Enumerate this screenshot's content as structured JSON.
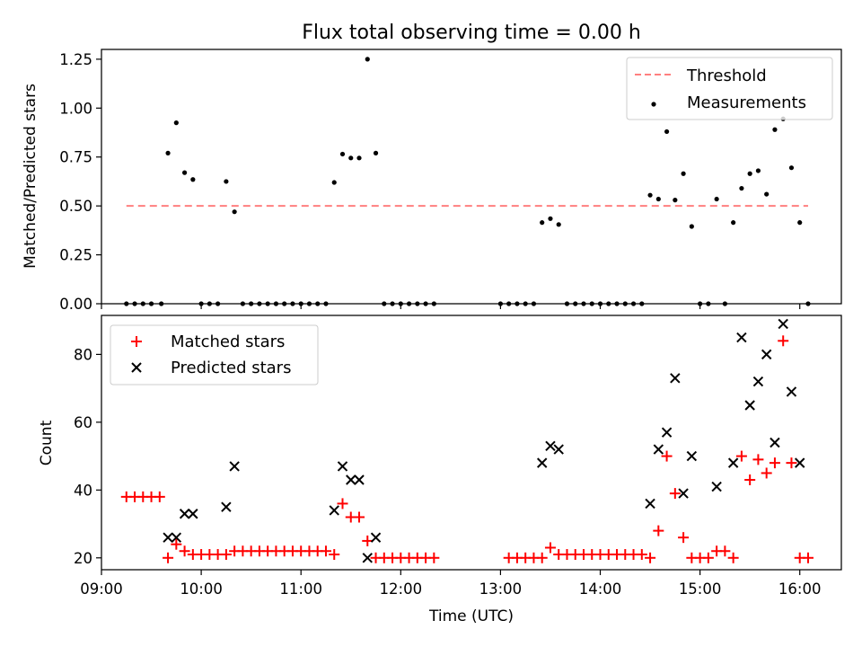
{
  "figure": {
    "title": "Flux total observing time = 0.00 h"
  },
  "colors": {
    "threshold": "#ff7f7f",
    "measurement": "#000000",
    "matched": "#ff0000",
    "predicted": "#000000"
  },
  "chart_data": [
    {
      "type": "scatter",
      "title": "Flux total observing time = 0.00 h",
      "xlabel": "",
      "ylabel": "Matched/Predicted stars",
      "x_unit": "hours UTC",
      "xlim": [
        "09:00",
        "16:25"
      ],
      "ylim": [
        0,
        1.3
      ],
      "x_ticks": [
        "09:00",
        "10:00",
        "11:00",
        "12:00",
        "13:00",
        "14:00",
        "15:00",
        "16:00"
      ],
      "y_ticks": [
        "0.00",
        "0.25",
        "0.50",
        "0.75",
        "1.00",
        "1.25"
      ],
      "legend": {
        "location": "top-right",
        "entries": [
          "Threshold",
          "Measurements"
        ]
      },
      "threshold": {
        "name": "Threshold",
        "value": 0.5,
        "x_start": "09:15",
        "x_end": "16:05",
        "style": "dashed"
      },
      "series": [
        {
          "name": "Measurements",
          "marker": "dot",
          "points": [
            [
              "09:15",
              0
            ],
            [
              "09:20",
              0
            ],
            [
              "09:25",
              0
            ],
            [
              "09:30",
              0
            ],
            [
              "09:36",
              0
            ],
            [
              "09:40",
              0.77
            ],
            [
              "09:45",
              0.925
            ],
            [
              "09:50",
              0.67
            ],
            [
              "09:55",
              0.635
            ],
            [
              "10:00",
              0
            ],
            [
              "10:05",
              0
            ],
            [
              "10:10",
              0
            ],
            [
              "10:15",
              0.625
            ],
            [
              "10:20",
              0.47
            ],
            [
              "10:25",
              0
            ],
            [
              "10:30",
              0
            ],
            [
              "10:35",
              0
            ],
            [
              "10:40",
              0
            ],
            [
              "10:45",
              0
            ],
            [
              "10:50",
              0
            ],
            [
              "10:55",
              0
            ],
            [
              "11:00",
              0
            ],
            [
              "11:05",
              0
            ],
            [
              "11:10",
              0
            ],
            [
              "11:15",
              0
            ],
            [
              "11:20",
              0.62
            ],
            [
              "11:25",
              0.765
            ],
            [
              "11:30",
              0.745
            ],
            [
              "11:35",
              0.745
            ],
            [
              "11:40",
              1.25
            ],
            [
              "11:45",
              0.77
            ],
            [
              "11:50",
              0
            ],
            [
              "11:55",
              0
            ],
            [
              "12:00",
              0
            ],
            [
              "12:05",
              0
            ],
            [
              "12:10",
              0
            ],
            [
              "12:15",
              0
            ],
            [
              "12:20",
              0
            ],
            [
              "13:00",
              0
            ],
            [
              "13:05",
              0
            ],
            [
              "13:10",
              0
            ],
            [
              "13:15",
              0
            ],
            [
              "13:20",
              0
            ],
            [
              "13:25",
              0.415
            ],
            [
              "13:30",
              0.435
            ],
            [
              "13:35",
              0.405
            ],
            [
              "13:40",
              0
            ],
            [
              "13:45",
              0
            ],
            [
              "13:50",
              0
            ],
            [
              "13:55",
              0
            ],
            [
              "14:00",
              0
            ],
            [
              "14:05",
              0
            ],
            [
              "14:10",
              0
            ],
            [
              "14:15",
              0
            ],
            [
              "14:20",
              0
            ],
            [
              "14:25",
              0
            ],
            [
              "14:30",
              0.555
            ],
            [
              "14:35",
              0.535
            ],
            [
              "14:40",
              0.88
            ],
            [
              "14:45",
              0.53
            ],
            [
              "14:50",
              0.665
            ],
            [
              "14:55",
              0.395
            ],
            [
              "15:00",
              0
            ],
            [
              "15:05",
              0
            ],
            [
              "15:10",
              0.535
            ],
            [
              "15:15",
              0
            ],
            [
              "15:20",
              0.415
            ],
            [
              "15:25",
              0.59
            ],
            [
              "15:30",
              0.665
            ],
            [
              "15:35",
              0.68
            ],
            [
              "15:40",
              0.56
            ],
            [
              "15:45",
              0.89
            ],
            [
              "15:50",
              0.945
            ],
            [
              "15:55",
              0.695
            ],
            [
              "16:00",
              0.415
            ],
            [
              "16:05",
              0
            ]
          ]
        }
      ]
    },
    {
      "type": "scatter",
      "title": "",
      "xlabel": "Time (UTC)",
      "ylabel": "Count",
      "x_unit": "hours UTC",
      "xlim": [
        "09:00",
        "16:25"
      ],
      "ylim": [
        16.5,
        91.5
      ],
      "x_ticks": [
        "09:00",
        "10:00",
        "11:00",
        "12:00",
        "13:00",
        "14:00",
        "15:00",
        "16:00"
      ],
      "y_ticks": [
        "20",
        "40",
        "60",
        "80"
      ],
      "legend": {
        "location": "top-left",
        "entries": [
          "Matched stars",
          "Predicted stars"
        ]
      },
      "series": [
        {
          "name": "Matched stars",
          "marker": "plus",
          "points": [
            [
              "09:15",
              38
            ],
            [
              "09:20",
              38
            ],
            [
              "09:25",
              38
            ],
            [
              "09:30",
              38
            ],
            [
              "09:35",
              38
            ],
            [
              "09:40",
              20
            ],
            [
              "09:45",
              24
            ],
            [
              "09:50",
              22
            ],
            [
              "09:55",
              21
            ],
            [
              "10:00",
              21
            ],
            [
              "10:05",
              21
            ],
            [
              "10:10",
              21
            ],
            [
              "10:15",
              21
            ],
            [
              "10:20",
              22
            ],
            [
              "10:25",
              22
            ],
            [
              "10:30",
              22
            ],
            [
              "10:35",
              22
            ],
            [
              "10:40",
              22
            ],
            [
              "10:45",
              22
            ],
            [
              "10:50",
              22
            ],
            [
              "10:55",
              22
            ],
            [
              "11:00",
              22
            ],
            [
              "11:05",
              22
            ],
            [
              "11:10",
              22
            ],
            [
              "11:15",
              22
            ],
            [
              "11:20",
              21
            ],
            [
              "11:25",
              36
            ],
            [
              "11:30",
              32
            ],
            [
              "11:35",
              32
            ],
            [
              "11:40",
              25
            ],
            [
              "11:45",
              20
            ],
            [
              "11:50",
              20
            ],
            [
              "11:55",
              20
            ],
            [
              "12:00",
              20
            ],
            [
              "12:05",
              20
            ],
            [
              "12:10",
              20
            ],
            [
              "12:15",
              20
            ],
            [
              "12:20",
              20
            ],
            [
              "13:05",
              20
            ],
            [
              "13:10",
              20
            ],
            [
              "13:15",
              20
            ],
            [
              "13:20",
              20
            ],
            [
              "13:25",
              20
            ],
            [
              "13:30",
              23
            ],
            [
              "13:35",
              21
            ],
            [
              "13:40",
              21
            ],
            [
              "13:45",
              21
            ],
            [
              "13:50",
              21
            ],
            [
              "13:55",
              21
            ],
            [
              "14:00",
              21
            ],
            [
              "14:05",
              21
            ],
            [
              "14:10",
              21
            ],
            [
              "14:15",
              21
            ],
            [
              "14:20",
              21
            ],
            [
              "14:25",
              21
            ],
            [
              "14:30",
              20
            ],
            [
              "14:35",
              28
            ],
            [
              "14:40",
              50
            ],
            [
              "14:45",
              39
            ],
            [
              "14:50",
              26
            ],
            [
              "14:55",
              20
            ],
            [
              "15:00",
              20
            ],
            [
              "15:05",
              20
            ],
            [
              "15:10",
              22
            ],
            [
              "15:15",
              22
            ],
            [
              "15:20",
              20
            ],
            [
              "15:25",
              50
            ],
            [
              "15:30",
              43
            ],
            [
              "15:35",
              49
            ],
            [
              "15:40",
              45
            ],
            [
              "15:45",
              48
            ],
            [
              "15:50",
              84
            ],
            [
              "15:55",
              48
            ],
            [
              "16:00",
              20
            ],
            [
              "16:05",
              20
            ]
          ]
        },
        {
          "name": "Predicted stars",
          "marker": "x",
          "points": [
            [
              "09:40",
              26
            ],
            [
              "09:45",
              26
            ],
            [
              "09:50",
              33
            ],
            [
              "09:55",
              33
            ],
            [
              "10:15",
              35
            ],
            [
              "10:20",
              47
            ],
            [
              "11:20",
              34
            ],
            [
              "11:25",
              47
            ],
            [
              "11:30",
              43
            ],
            [
              "11:35",
              43
            ],
            [
              "11:40",
              20
            ],
            [
              "11:45",
              26
            ],
            [
              "13:25",
              48
            ],
            [
              "13:30",
              53
            ],
            [
              "13:35",
              52
            ],
            [
              "14:30",
              36
            ],
            [
              "14:35",
              52
            ],
            [
              "14:40",
              57
            ],
            [
              "14:45",
              73
            ],
            [
              "14:50",
              39
            ],
            [
              "14:55",
              50
            ],
            [
              "15:10",
              41
            ],
            [
              "15:20",
              48
            ],
            [
              "15:25",
              85
            ],
            [
              "15:30",
              65
            ],
            [
              "15:35",
              72
            ],
            [
              "15:40",
              80
            ],
            [
              "15:45",
              54
            ],
            [
              "15:50",
              89
            ],
            [
              "15:55",
              69
            ],
            [
              "16:00",
              48
            ]
          ]
        }
      ]
    }
  ]
}
